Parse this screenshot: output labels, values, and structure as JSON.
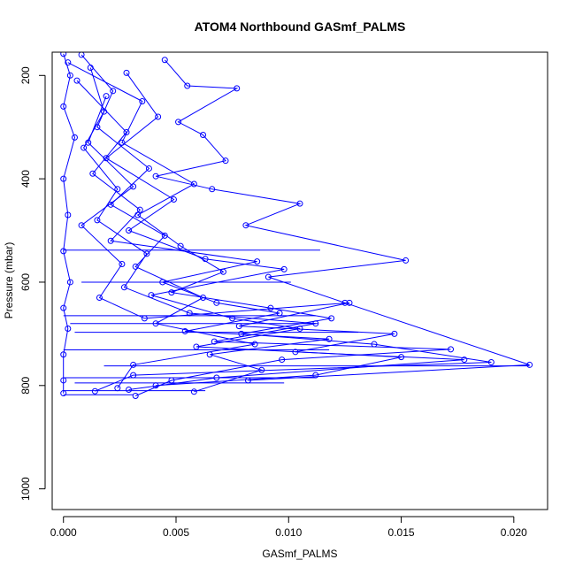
{
  "chart_data": {
    "type": "line",
    "title": "ATOM4 Northbound GASmf_PALMS",
    "xlabel": "GASmf_PALMS",
    "ylabel": "Pressure (mbar)",
    "xlim": [
      -0.0005,
      0.0215
    ],
    "ylim": [
      1040,
      155
    ],
    "y_reversed": true,
    "grid": false,
    "legend": "none",
    "line_color": "#0000ff",
    "marker": "open-circle",
    "x_ticks": [
      {
        "value": 0.0,
        "label": "0.000"
      },
      {
        "value": 0.005,
        "label": "0.005"
      },
      {
        "value": 0.01,
        "label": "0.010"
      },
      {
        "value": 0.015,
        "label": "0.015"
      },
      {
        "value": 0.02,
        "label": "0.020"
      }
    ],
    "y_ticks": [
      {
        "value": 200,
        "label": "200"
      },
      {
        "value": 400,
        "label": "400"
      },
      {
        "value": 600,
        "label": "600"
      },
      {
        "value": 800,
        "label": "800"
      },
      {
        "value": 1000,
        "label": "1000"
      }
    ],
    "series": [
      {
        "values": [
          [
            0.0,
            158
          ],
          [
            0.0003,
            200
          ],
          [
            0.0,
            260
          ],
          [
            0.0005,
            320
          ],
          [
            0.0,
            400
          ],
          [
            0.0002,
            470
          ],
          [
            0.0,
            540
          ],
          [
            0.0003,
            600
          ],
          [
            0.0,
            650
          ],
          [
            0.0002,
            690
          ],
          [
            0.0,
            740
          ],
          [
            0.0,
            790
          ],
          [
            0.0,
            815
          ]
        ]
      },
      {
        "values": [
          [
            0.0008,
            160
          ],
          [
            0.0022,
            230
          ],
          [
            0.0015,
            300
          ],
          [
            0.0038,
            380
          ],
          [
            0.0021,
            450
          ],
          [
            0.0045,
            510
          ],
          [
            0.0032,
            570
          ],
          [
            0.0062,
            630
          ],
          [
            0.0041,
            680
          ],
          [
            0.0085,
            720
          ],
          [
            0.0031,
            760
          ],
          [
            0.0024,
            805
          ]
        ]
      },
      {
        "values": [
          [
            0.0045,
            170
          ],
          [
            0.0055,
            220
          ],
          [
            0.0077,
            225
          ],
          [
            0.0051,
            290
          ],
          [
            0.0062,
            315
          ],
          [
            0.0072,
            365
          ],
          [
            0.0041,
            395
          ],
          [
            0.0066,
            420
          ],
          [
            0.0105,
            448
          ],
          [
            0.0081,
            490
          ],
          [
            0.0152,
            558
          ],
          [
            0.0091,
            590
          ],
          [
            0.0125,
            640
          ],
          [
            0.0207,
            760
          ],
          [
            0.0082,
            790
          ]
        ]
      },
      {
        "values": [
          [
            0.0002,
            175
          ],
          [
            0.0035,
            250
          ],
          [
            0.0026,
            330
          ],
          [
            0.0058,
            410
          ],
          [
            0.0033,
            470
          ],
          [
            0.0052,
            530
          ],
          [
            0.0071,
            580
          ],
          [
            0.0048,
            620
          ],
          [
            0.0092,
            650
          ],
          [
            0.0119,
            670
          ],
          [
            0.0079,
            700
          ],
          [
            0.0138,
            720
          ],
          [
            0.019,
            755
          ],
          [
            0.0031,
            780
          ],
          [
            0.0014,
            811
          ]
        ]
      },
      {
        "values": [
          [
            0.0012,
            185
          ],
          [
            0.0018,
            270
          ],
          [
            0.0009,
            340
          ],
          [
            0.0024,
            420
          ],
          [
            0.0015,
            480
          ],
          [
            0.0037,
            545
          ],
          [
            0.0027,
            610
          ],
          [
            0.0056,
            660
          ],
          [
            0.0112,
            680
          ],
          [
            0.0067,
            715
          ],
          [
            0.0172,
            730
          ],
          [
            0.0097,
            750
          ],
          [
            0.0048,
            790
          ],
          [
            0.0032,
            820
          ]
        ]
      },
      {
        "values": [
          [
            0.0028,
            195
          ],
          [
            0.0042,
            280
          ],
          [
            0.0019,
            360
          ],
          [
            0.0049,
            440
          ],
          [
            0.0029,
            500
          ],
          [
            0.0063,
            555
          ],
          [
            0.0098,
            575
          ],
          [
            0.0039,
            625
          ],
          [
            0.0075,
            670
          ],
          [
            0.0105,
            690
          ],
          [
            0.0059,
            725
          ],
          [
            0.015,
            745
          ],
          [
            0.0112,
            780
          ],
          [
            0.0041,
            800
          ]
        ]
      },
      {
        "values": [
          [
            0.0006,
            210
          ],
          [
            0.0028,
            310
          ],
          [
            0.0013,
            390
          ],
          [
            0.0034,
            460
          ],
          [
            0.0021,
            520
          ],
          [
            0.0086,
            560
          ],
          [
            0.0044,
            600
          ],
          [
            0.0068,
            640
          ],
          [
            0.0096,
            660
          ],
          [
            0.0054,
            695
          ],
          [
            0.0118,
            710
          ],
          [
            0.0065,
            740
          ],
          [
            0.0088,
            770
          ],
          [
            0.0058,
            812
          ]
        ]
      },
      {
        "values": [
          [
            0.0019,
            240
          ],
          [
            0.0011,
            330
          ],
          [
            0.0031,
            415
          ],
          [
            0.0008,
            490
          ],
          [
            0.0026,
            565
          ],
          [
            0.0016,
            630
          ],
          [
            0.0036,
            670
          ],
          [
            0.0127,
            640
          ],
          [
            0.0078,
            685
          ],
          [
            0.0147,
            700
          ],
          [
            0.0103,
            735
          ],
          [
            0.0178,
            750
          ],
          [
            0.0068,
            785
          ],
          [
            0.0029,
            808
          ]
        ]
      }
    ],
    "horizontal_segments": [
      {
        "x1": 0.0,
        "x2": 0.0114,
        "y": 538
      },
      {
        "x1": 0.0008,
        "x2": 0.0101,
        "y": 600
      },
      {
        "x1": 0.0,
        "x2": 0.0112,
        "y": 665
      },
      {
        "x1": 0.0003,
        "x2": 0.0113,
        "y": 680
      },
      {
        "x1": 0.0005,
        "x2": 0.0131,
        "y": 697
      },
      {
        "x1": 0.0,
        "x2": 0.0118,
        "y": 731
      },
      {
        "x1": 0.0018,
        "x2": 0.0207,
        "y": 762
      },
      {
        "x1": 0.0,
        "x2": 0.0112,
        "y": 785
      },
      {
        "x1": 0.0005,
        "x2": 0.0098,
        "y": 795
      },
      {
        "x1": 0.0,
        "x2": 0.0063,
        "y": 810
      },
      {
        "x1": 0.0,
        "x2": 0.0031,
        "y": 818
      }
    ]
  }
}
